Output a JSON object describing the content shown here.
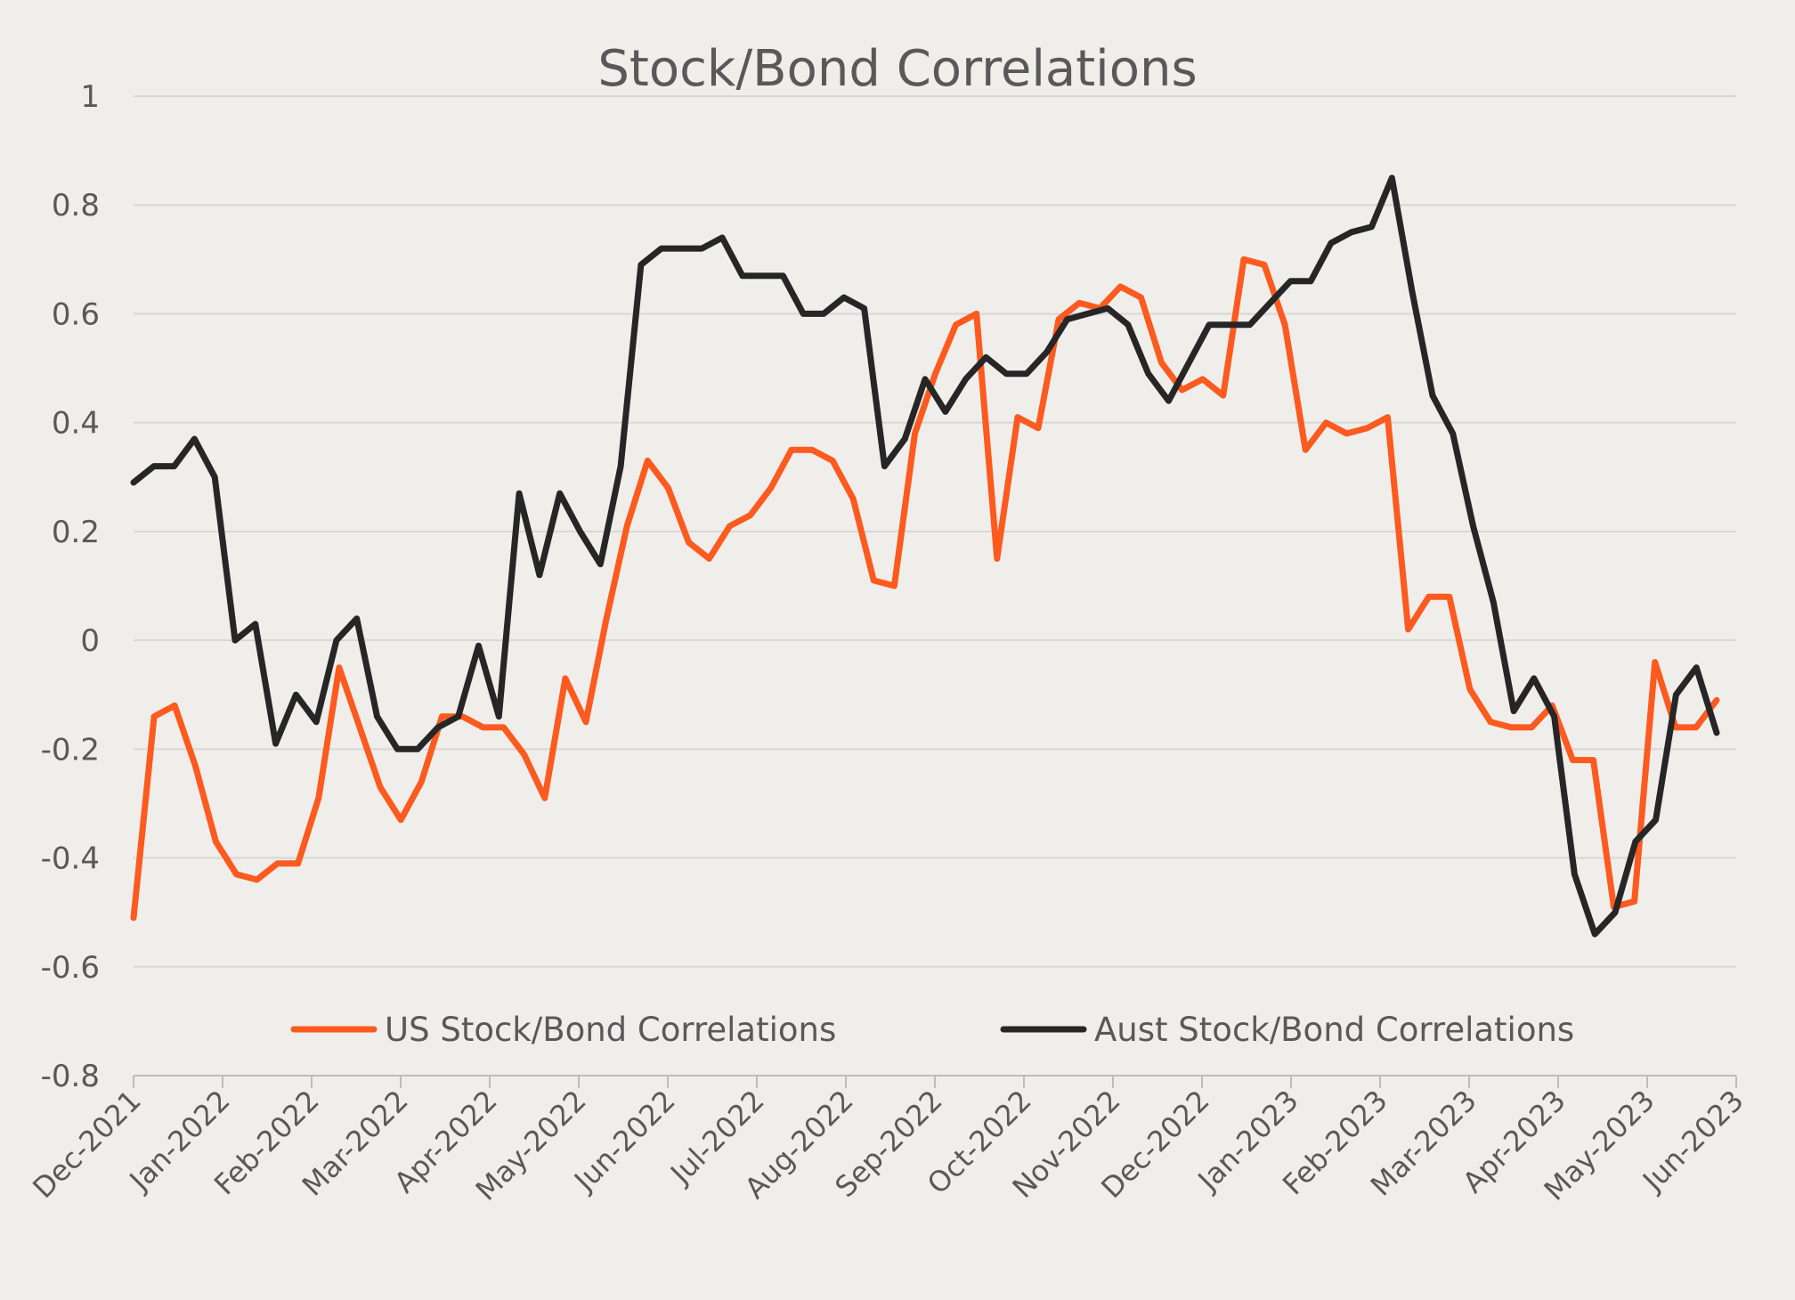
{
  "chart_data": {
    "type": "line",
    "title": "Stock/Bond Correlations",
    "xlabel": "",
    "ylabel": "",
    "ylim": [
      -0.8,
      1
    ],
    "yticks": [
      "1",
      "0.8",
      "0.6",
      "0.4",
      "0.2",
      "0",
      "-0.2",
      "-0.4",
      "-0.6",
      "-0.8"
    ],
    "ytick_values": [
      1,
      0.8,
      0.6,
      0.4,
      0.2,
      0,
      -0.2,
      -0.4,
      -0.6,
      -0.8
    ],
    "xticks": [
      "Dec-2021",
      "Jan-2022",
      "Feb-2022",
      "Mar-2022",
      "Apr-2022",
      "May-2022",
      "Jun-2022",
      "Jul-2022",
      "Aug-2022",
      "Sep-2022",
      "Oct-2022",
      "Nov-2022",
      "Dec-2022",
      "Jan-2023",
      "Feb-2023",
      "Mar-2023",
      "Apr-2023",
      "May-2023",
      "Jun-2023"
    ],
    "grid": true,
    "legend_position": "bottom-inside",
    "series": [
      {
        "name": "US Stock/Bond Correlations",
        "color": "#fc5a1f",
        "values": [
          -0.51,
          -0.14,
          -0.12,
          -0.23,
          -0.37,
          -0.43,
          -0.44,
          -0.41,
          -0.41,
          -0.29,
          -0.05,
          -0.16,
          -0.27,
          -0.33,
          -0.26,
          -0.14,
          -0.14,
          -0.16,
          -0.16,
          -0.21,
          -0.29,
          -0.07,
          -0.15,
          0.04,
          0.21,
          0.33,
          0.28,
          0.18,
          0.15,
          0.21,
          0.23,
          0.28,
          0.35,
          0.35,
          0.33,
          0.26,
          0.11,
          0.1,
          0.38,
          0.49,
          0.58,
          0.6,
          0.15,
          0.41,
          0.39,
          0.59,
          0.62,
          0.61,
          0.65,
          0.63,
          0.51,
          0.46,
          0.48,
          0.45,
          0.7,
          0.69,
          0.58,
          0.35,
          0.4,
          0.38,
          0.39,
          0.41,
          0.02,
          0.08,
          0.08,
          -0.09,
          -0.15,
          -0.16,
          -0.16,
          -0.12,
          -0.22,
          -0.22,
          -0.49,
          -0.48,
          -0.04,
          -0.16,
          -0.16,
          -0.11
        ]
      },
      {
        "name": "Aust Stock/Bond Correlations",
        "color": "#262626",
        "values": [
          0.29,
          0.32,
          0.32,
          0.37,
          0.3,
          0.0,
          0.03,
          -0.19,
          -0.1,
          -0.15,
          0.0,
          0.04,
          -0.14,
          -0.2,
          -0.2,
          -0.16,
          -0.14,
          -0.01,
          -0.14,
          0.27,
          0.12,
          0.27,
          0.2,
          0.14,
          0.32,
          0.69,
          0.72,
          0.72,
          0.72,
          0.74,
          0.67,
          0.67,
          0.67,
          0.6,
          0.6,
          0.63,
          0.61,
          0.32,
          0.37,
          0.48,
          0.42,
          0.48,
          0.52,
          0.49,
          0.49,
          0.53,
          0.59,
          0.6,
          0.61,
          0.58,
          0.49,
          0.44,
          0.51,
          0.58,
          0.58,
          0.58,
          0.62,
          0.66,
          0.66,
          0.73,
          0.75,
          0.76,
          0.85,
          0.64,
          0.45,
          0.38,
          0.21,
          0.07,
          -0.13,
          -0.07,
          -0.14,
          -0.43,
          -0.54,
          -0.5,
          -0.37,
          -0.33,
          -0.1,
          -0.05,
          -0.17
        ]
      }
    ]
  }
}
